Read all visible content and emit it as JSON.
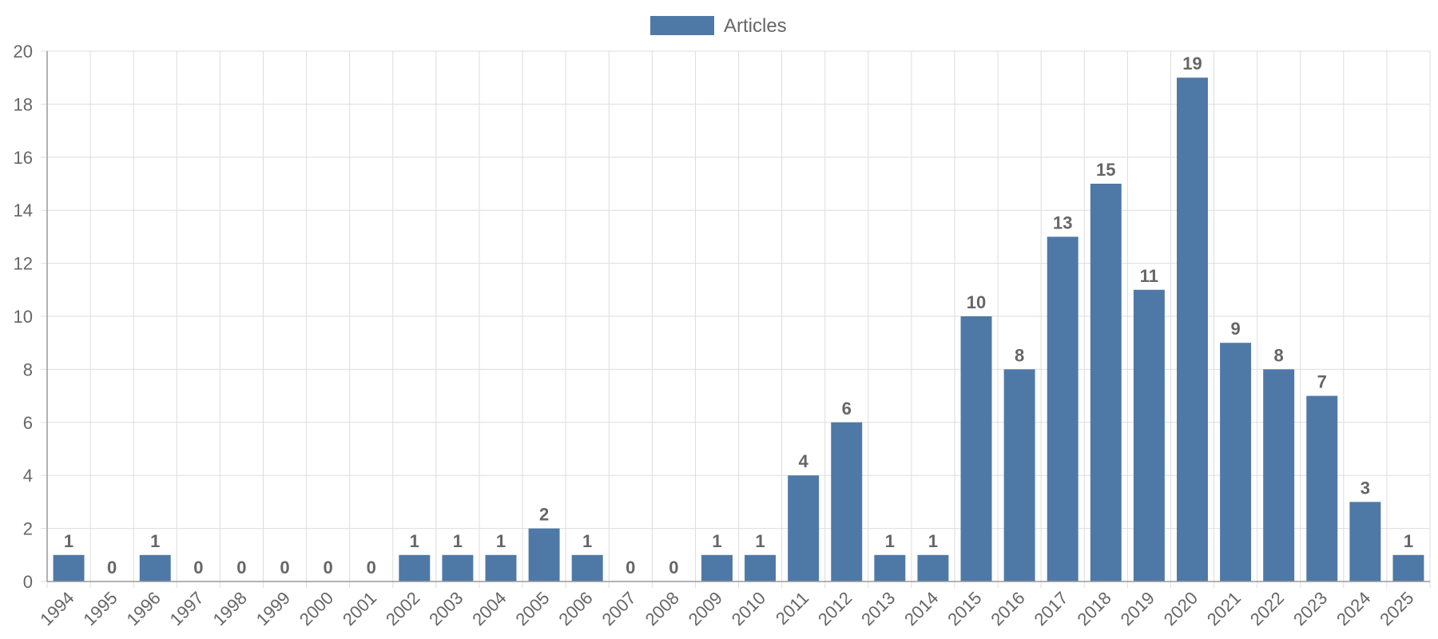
{
  "chart_data": {
    "type": "bar",
    "categories": [
      "1994",
      "1995",
      "1996",
      "1997",
      "1998",
      "1999",
      "2000",
      "2001",
      "2002",
      "2003",
      "2004",
      "2005",
      "2006",
      "2007",
      "2008",
      "2009",
      "2010",
      "2011",
      "2012",
      "2013",
      "2014",
      "2015",
      "2016",
      "2017",
      "2018",
      "2019",
      "2020",
      "2021",
      "2022",
      "2023",
      "2024",
      "2025"
    ],
    "series": [
      {
        "name": "Articles",
        "values": [
          1,
          0,
          1,
          0,
          0,
          0,
          0,
          0,
          1,
          1,
          1,
          2,
          1,
          0,
          0,
          1,
          1,
          4,
          6,
          1,
          1,
          10,
          8,
          13,
          15,
          11,
          19,
          9,
          8,
          7,
          3,
          1
        ]
      }
    ],
    "ylim": [
      0,
      20
    ],
    "yticks": [
      0,
      2,
      4,
      6,
      8,
      10,
      12,
      14,
      16,
      18,
      20
    ],
    "grid": true,
    "legend_position": "top-center",
    "data_labels": true,
    "colors": {
      "bar": "#4e79a7"
    }
  }
}
